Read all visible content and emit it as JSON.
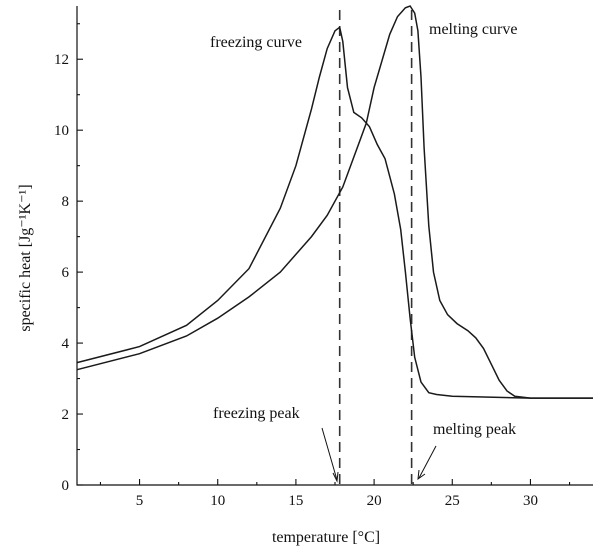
{
  "chart_data": {
    "type": "line",
    "title": "",
    "xlabel": "temperature [°C]",
    "ylabel": "specific heat [Jg⁻¹K⁻¹]",
    "xlim": [
      1,
      34
    ],
    "ylim": [
      0,
      13.5
    ],
    "xticks": [
      5,
      10,
      15,
      20,
      25,
      30
    ],
    "yticks": [
      0,
      2,
      4,
      6,
      8,
      10,
      12
    ],
    "grid": false,
    "legend": "none",
    "series": [
      {
        "name": "freezing curve",
        "x": [
          1,
          5,
          8,
          10,
          12,
          14,
          15,
          16,
          16.5,
          17,
          17.5,
          17.8,
          18,
          18.3,
          18.7,
          19.2,
          19.7,
          20.2,
          20.7,
          21,
          21.3,
          21.7,
          22,
          22.3,
          22.6,
          23,
          23.5,
          24,
          25,
          27,
          30,
          34
        ],
        "y": [
          3.45,
          3.9,
          4.5,
          5.2,
          6.1,
          7.8,
          9.0,
          10.6,
          11.5,
          12.3,
          12.8,
          12.9,
          12.5,
          11.2,
          10.5,
          10.35,
          10.1,
          9.6,
          9.2,
          8.7,
          8.2,
          7.2,
          6.0,
          4.7,
          3.6,
          2.9,
          2.6,
          2.55,
          2.5,
          2.48,
          2.45,
          2.45
        ]
      },
      {
        "name": "melting curve",
        "x": [
          1,
          5,
          8,
          10,
          12,
          14,
          16,
          17,
          18,
          19,
          19.5,
          20,
          21,
          21.5,
          22,
          22.3,
          22.6,
          22.8,
          23,
          23.2,
          23.5,
          23.8,
          24.2,
          24.7,
          25.3,
          26,
          26.5,
          27,
          27.5,
          28,
          28.5,
          29,
          30,
          32,
          34
        ],
        "y": [
          3.25,
          3.7,
          4.2,
          4.7,
          5.3,
          6.0,
          7.0,
          7.6,
          8.4,
          9.6,
          10.2,
          11.2,
          12.7,
          13.2,
          13.45,
          13.5,
          13.3,
          12.8,
          11.5,
          9.5,
          7.3,
          6.0,
          5.2,
          4.8,
          4.55,
          4.35,
          4.15,
          3.85,
          3.4,
          2.95,
          2.65,
          2.5,
          2.45,
          2.45,
          2.45
        ]
      }
    ],
    "reference_lines": [
      {
        "axis": "x",
        "value": 17.8,
        "style": "dashed",
        "label": "freezing peak"
      },
      {
        "axis": "x",
        "value": 22.4,
        "style": "dashed",
        "label": "melting peak"
      }
    ],
    "annotations": {
      "freezing_curve_label": "freezing curve",
      "melting_curve_label": "melting curve",
      "freezing_peak_label": "freezing peak",
      "melting_peak_label": "melting peak"
    }
  }
}
